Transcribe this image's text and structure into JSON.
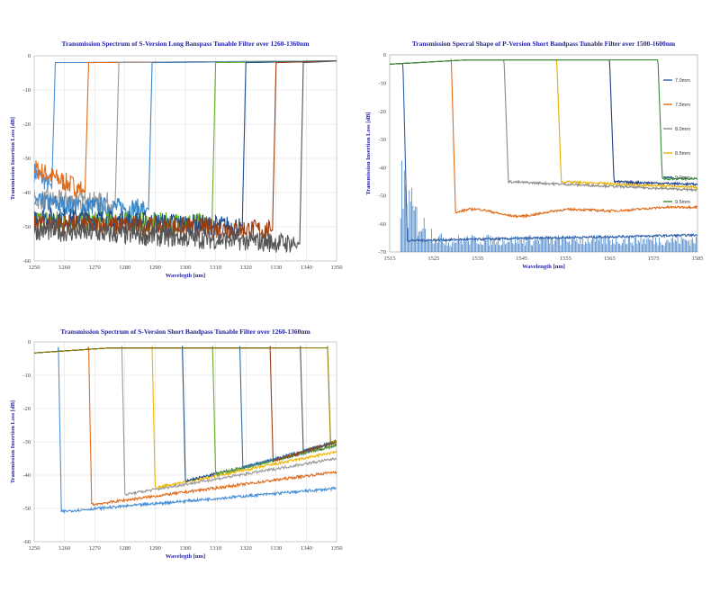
{
  "chart_data": [
    {
      "id": "c1",
      "type": "line",
      "title": "Transmission Spectrum of S-Version Long Banspass Tunable Filter over 1260-1360nm",
      "xlabel": "Wavelegth [nm]",
      "ylabel": "Transmission Insertion Loss [dB]",
      "xlim": [
        1250,
        1350
      ],
      "ylim": [
        -60,
        0
      ],
      "x_ticks": [
        1250,
        1260,
        1270,
        1280,
        1290,
        1300,
        1310,
        1320,
        1330,
        1340,
        1350
      ],
      "y_ticks": [
        0,
        -10,
        -20,
        -30,
        -40,
        -50,
        -60
      ],
      "grid": true,
      "filter": "longpass",
      "series": [
        {
          "color": "#4a90d9",
          "edge": 1257,
          "floor": -39,
          "tail": -34
        },
        {
          "color": "#e06c1c",
          "edge": 1268,
          "floor": -40,
          "tail": -33
        },
        {
          "color": "#9a9a9a",
          "edge": 1278,
          "floor": -43,
          "tail": -42
        },
        {
          "color": "#3a86c8",
          "edge": 1289,
          "floor": -45,
          "tail": -43
        },
        {
          "color": "#6aaa2a",
          "edge": 1310,
          "floor": -49,
          "tail": -48
        },
        {
          "color": "#1f4e8c",
          "edge": 1320,
          "floor": -50,
          "tail": -47
        },
        {
          "color": "#9a3d10",
          "edge": 1330,
          "floor": -51,
          "tail": -49
        },
        {
          "color": "#555555",
          "edge": 1339,
          "floor": -55,
          "tail": -51
        }
      ]
    },
    {
      "id": "c2",
      "type": "line",
      "title": "Transmission Specral Shape of P-Version Short Bandpass Tunable Filter over 1500-1600nm",
      "xlabel": "Wavelength [nm]",
      "ylabel": "Transmission Insertion Loss [dB]",
      "xlim": [
        1515,
        1585
      ],
      "ylim": [
        -70,
        0
      ],
      "x_ticks": [
        1515,
        1525,
        1535,
        1545,
        1555,
        1565,
        1575,
        1585
      ],
      "y_ticks": [
        0,
        -10,
        -20,
        -30,
        -40,
        -50,
        -60,
        -70
      ],
      "grid": false,
      "filter": "shortpass",
      "legend": [
        "7.0mm",
        "7.5mm",
        "8.0mm",
        "8.5mm",
        "9.0mm",
        "9.5mm"
      ],
      "legend_position": "right",
      "series": [
        {
          "color": "#2f5fa8",
          "edge": 1518,
          "floor": -66,
          "tail": -64
        },
        {
          "color": "#e06c1c",
          "edge": 1529,
          "floor": -57,
          "tail": -54
        },
        {
          "color": "#8a8a8a",
          "edge": 1541,
          "floor": -45,
          "tail": -48
        },
        {
          "color": "#e8b000",
          "edge": 1553,
          "floor": -45,
          "tail": -47
        },
        {
          "color": "#1f3f8c",
          "edge": 1565,
          "floor": -45,
          "tail": -46
        },
        {
          "color": "#3a8a3a",
          "edge": 1576,
          "floor": -44,
          "tail": -44
        }
      ]
    },
    {
      "id": "c3",
      "type": "line",
      "title": "Transmission Spectrum of S-Version Short Bandpass Tunable Filter over 1260-1360nm",
      "xlabel": "Wavelegth [nm]",
      "ylabel": "Transmission Insertion Loss [dB]",
      "xlim": [
        1250,
        1350
      ],
      "ylim": [
        -60,
        0
      ],
      "x_ticks": [
        1250,
        1260,
        1270,
        1280,
        1290,
        1300,
        1310,
        1320,
        1330,
        1340,
        1350
      ],
      "y_ticks": [
        0,
        -10,
        -20,
        -30,
        -40,
        -50,
        -60
      ],
      "grid": true,
      "filter": "shortpass",
      "series": [
        {
          "color": "#4a90d9",
          "edge": 1258,
          "floor": -51,
          "tail": -44
        },
        {
          "color": "#e06c1c",
          "edge": 1268,
          "floor": -49,
          "tail": -39
        },
        {
          "color": "#9a9a9a",
          "edge": 1279,
          "floor": -46,
          "tail": -35
        },
        {
          "color": "#f0b400",
          "edge": 1289,
          "floor": -44,
          "tail": -33
        },
        {
          "color": "#1f4e8c",
          "edge": 1299,
          "floor": -42,
          "tail": -31
        },
        {
          "color": "#6aaa2a",
          "edge": 1309,
          "floor": -40,
          "tail": -31
        },
        {
          "color": "#2f6fa8",
          "edge": 1318,
          "floor": -38,
          "tail": -30
        },
        {
          "color": "#9a3d10",
          "edge": 1328,
          "floor": -36,
          "tail": -30
        },
        {
          "color": "#555555",
          "edge": 1338,
          "floor": -33,
          "tail": -30
        },
        {
          "color": "#8a7a00",
          "edge": 1347,
          "floor": -30,
          "tail": -30
        }
      ]
    }
  ]
}
